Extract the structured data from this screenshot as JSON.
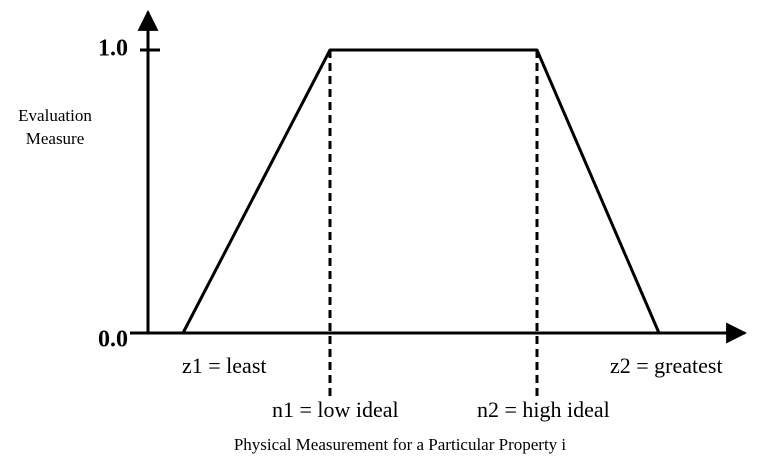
{
  "axis": {
    "y_top_label": "1.0",
    "y_bottom_label": "0.0",
    "y_title": [
      "Evaluation",
      "Measure"
    ],
    "x_title": "Physical Measurement for a Particular Property i"
  },
  "points": {
    "z1": "z1 = least",
    "z2": "z2 = greatest",
    "n1": "n1 = low ideal",
    "n2": "n2 = high ideal"
  }
}
